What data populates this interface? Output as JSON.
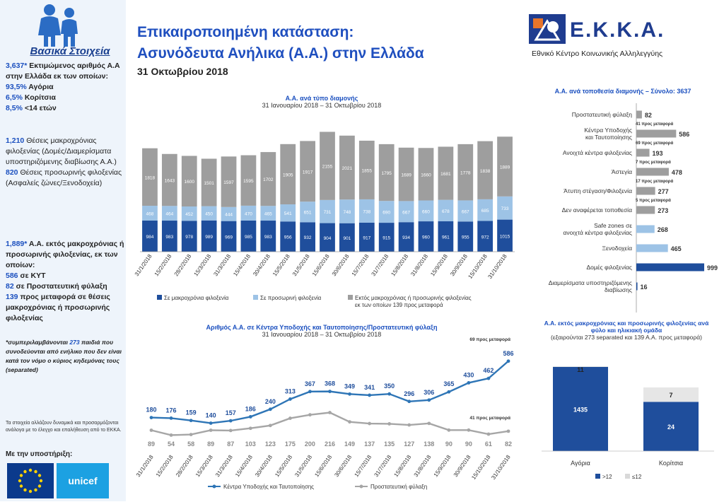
{
  "header": {
    "title_line1": "Επικαιροποιημένη κατάσταση:",
    "title_line2": "Ασυνόδευτα Ανήλικα (Α.Α.) στην Ελλάδα",
    "date": "31 Οκτωβρίου 2018",
    "logo_text": "Ε.Κ.Κ.Α.",
    "logo_subtitle": "Εθνικό Κέντρο Κοινωνικής Αλληλεγγύης"
  },
  "sidebar": {
    "title": "Βασικά Στοιχεία",
    "block1": {
      "v1": "3,637*",
      "t1": " Εκτιμώμενος αριθμός Α.Α στην Ελλάδα εκ των οποίων:",
      "v2": "93,5%",
      "t2": " Αγόρια",
      "v3": "6,5%",
      "t3": " Κορίτσια",
      "v4": "8,5%",
      "t4": " <14 ετών"
    },
    "block2": {
      "v1": "1,210",
      "t1": " Θέσεις μακροχρόνιας φιλοξενίας (Δομές/Διαμερίσματα υποστηριζόμενης διαβίωσης Α.Α.)",
      "v2": "820",
      "t2": " Θέσεις προσωρινής φιλοξενίας (Ασφαλείς ζώνες/Ξενοδοχεία)"
    },
    "block3": {
      "v1": "1,889*",
      "t1": " Α.Α. εκτός μακροχρόνιας ή προσωρινής φιλοξενίας, εκ των οποίων:",
      "v2": "586",
      "t2": " σε ΚΥΤ",
      "v3": "82",
      "t3": " σε Προστατευτική φύλαξη",
      "v4": "139",
      "t4": " προς μεταφορά σε θέσεις μακροχρόνιας ή προσωρινής φιλοξενίας"
    },
    "note_pre": "*συμπεριλαμβάνονται ",
    "note_num": "273",
    "note_post": " παιδιά που συνοδεύονται από ενήλικο που δεν είναι κατά τον νόμο ο κύριος κηδεμόνας τους (separated)",
    "small_note": "Τα στοιχεία αλλάζουν δυναμικά και προσαρμόζονται ανάλογα με το έλεγχο και επαλήθευση από το ΕΚΚΑ.",
    "support_label": "Με την υποστήριξη:",
    "unicef_label": "unicef"
  },
  "colors": {
    "dark_blue": "#1f4e9c",
    "light_blue": "#9dc3e6",
    "grey": "#9e9e9e",
    "line_blue": "#2e75b6",
    "line_grey": "#a6a6a6"
  },
  "chart_data": [
    {
      "type": "bar",
      "stacked": true,
      "title": "Α.Α. ανά τύπο διαμονής",
      "subtitle": "31 Ιανουαρίου 2018 – 31 Οκτωβρίου 2018",
      "categories": [
        "31/1/2018",
        "15/2/2018",
        "28/2/2018",
        "15/3/2018",
        "31/3/2018",
        "15/4/2018",
        "30/4/2018",
        "15/5/2018",
        "31/5/2018",
        "15/6/2018",
        "30/6/2018",
        "15/7/2018",
        "31/7/2018",
        "15/8/2018",
        "31/8/2018",
        "15/9/2018",
        "30/9/2018",
        "15/10/2018",
        "31/10/2018"
      ],
      "series": [
        {
          "name": "Σε μακροχρόνια φιλοξενία",
          "values": [
            984,
            983,
            978,
            989,
            969,
            985,
            983,
            956,
            932,
            904,
            901,
            917,
            915,
            934,
            960,
            961,
            955,
            972,
            1015
          ]
        },
        {
          "name": "Σε προσωρινή φιλοξενία",
          "values": [
            468,
            464,
            452,
            450,
            444,
            470,
            465,
            541,
            651,
            731,
            748,
            738,
            690,
            667,
            660,
            678,
            667,
            685,
            733
          ]
        },
        {
          "name": "Εκτός μακροχρόνιας ή προσωρινής φιλοξενίας εκ των οποίων 139 προς μεταφορά",
          "values": [
            1818,
            1643,
            1600,
            1501,
            1597,
            1595,
            1702,
            1905,
            1917,
            2155,
            2021,
            1855,
            1795,
            1689,
            1660,
            1681,
            1778,
            1838,
            1889
          ]
        }
      ]
    },
    {
      "type": "line",
      "title": "Αριθμός Α.Α. σε Κέντρα Υποδοχής και Ταυτοποίησης/Προστατευτική φύλαξη",
      "subtitle": "31 Ιανουαρίου 2018 – 31 Οκτωβρίου 2018",
      "categories": [
        "31/1/2018",
        "15/2/2018",
        "28/2/2018",
        "15/3/2018",
        "31/3/2018",
        "15/4/2018",
        "30/4/2018",
        "15/5/2018",
        "31/5/2018",
        "15/6/2018",
        "30/6/2018",
        "15/7/2018",
        "31/7/2018",
        "15/8/2018",
        "31/8/2018",
        "15/9/2018",
        "30/9/2018",
        "15/10/2018",
        "31/10/2018"
      ],
      "series": [
        {
          "name": "Κέντρα Υποδοχής και Ταυτοποίησης",
          "values": [
            180,
            176,
            159,
            140,
            157,
            186,
            240,
            313,
            367,
            368,
            349,
            341,
            350,
            296,
            306,
            365,
            430,
            462,
            586
          ]
        },
        {
          "name": "Προστατευτική φύλαξη",
          "values": [
            89,
            54,
            58,
            89,
            87,
            103,
            123,
            175,
            200,
            216,
            149,
            137,
            135,
            127,
            138,
            90,
            90,
            61,
            82
          ]
        }
      ],
      "annotations": [
        "69 προς μεταφορά",
        "41 προς μεταφορά"
      ]
    },
    {
      "type": "bar",
      "orientation": "horizontal",
      "title": "Α.Α. ανά τοποθεσία διαμονής – Σύνολο: 3637",
      "categories": [
        "Προστατευτική φύλαξη",
        "Κέντρα Υποδοχής και Ταυτοποίησης",
        "Ανοιχτά κέντρα φιλοξενίας",
        "Άστεγία",
        "Άτυπη στέγαση/Φιλοξενία",
        "Δεν αναφέρεται τοποθεσία",
        "Safe zones σε ανοιχτά κέντρα φιλοξενίας",
        "Ξενοδοχεία",
        "Δομές φιλοξενίας",
        "Διαμερίσματα υποστηριζόμενης διαβίωσης"
      ],
      "values": [
        82,
        586,
        193,
        478,
        277,
        273,
        268,
        465,
        999,
        16
      ],
      "sub_labels": [
        "41 προς μεταφορά",
        "69 προς μεταφορά",
        "7 προς μεταφορά",
        "17 προς μεταφορά",
        "5 προς μεταφορά",
        "",
        "",
        "",
        "",
        ""
      ],
      "bar_colors": [
        "#9e9e9e",
        "#9e9e9e",
        "#9e9e9e",
        "#9e9e9e",
        "#9e9e9e",
        "#9e9e9e",
        "#9dc3e6",
        "#9dc3e6",
        "#1f4e9c",
        "#1f4e9c"
      ]
    },
    {
      "type": "bar",
      "stacked": true,
      "title": "Α.Α. εκτός μακροχρόνιας και προσωρινής φιλοξενίας ανά φύλο και ηλικιακή ομάδα",
      "subtitle": "(εξαιρούνται 273 separated και 139 Α.Α. προς μεταφορά)",
      "categories": [
        "Αγόρια",
        "Κορίτσια"
      ],
      "series": [
        {
          "name": ">12",
          "values": [
            1435,
            24
          ]
        },
        {
          "name": "≤12",
          "values": [
            11,
            7
          ]
        }
      ]
    }
  ]
}
